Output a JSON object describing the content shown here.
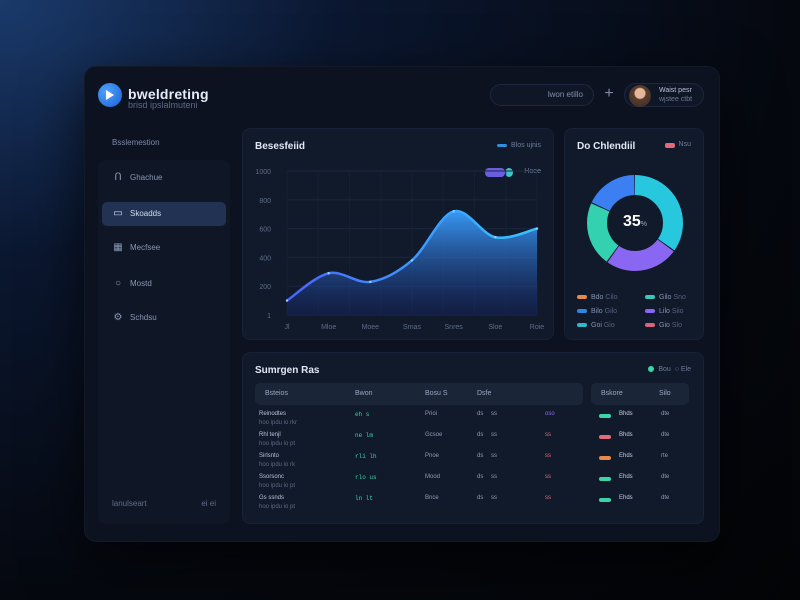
{
  "app": {
    "title": "bweldreting",
    "subtitle": "brisd ipslalmuteni"
  },
  "header": {
    "search_text": "lwon etillo",
    "user": {
      "name": "Waist pesr",
      "role": "wjstee ctbt"
    }
  },
  "sidebar": {
    "title": "Bsslemestion",
    "items": [
      {
        "icon": "chart-icon",
        "label": "Ghachue"
      },
      {
        "icon": "folder-icon",
        "label": "Skoadds"
      },
      {
        "icon": "grid-icon",
        "label": "Mecfsee"
      },
      {
        "icon": "circle-icon",
        "label": "Mostd"
      },
      {
        "icon": "settings-icon",
        "label": "Schdsu"
      }
    ],
    "footer": "lanulseart",
    "footer_meta": "ei ei"
  },
  "main_chart": {
    "title": "Besesfeiid",
    "legend": "Blos ujnis",
    "chip_label": "Hoee",
    "y_ticks": [
      "1000",
      "800",
      "600",
      "400",
      "200",
      "1"
    ],
    "x_ticks": [
      "Jl",
      "Mloe",
      "Moee",
      "Smas",
      "Snres",
      "Sloe",
      "Roie"
    ]
  },
  "chart_data": {
    "type": "area",
    "title": "Besesfeiid",
    "x": [
      "Jl",
      "Mloe",
      "Moee",
      "Smas",
      "Snres",
      "Sloe",
      "Roie"
    ],
    "values": [
      100,
      290,
      230,
      380,
      720,
      540,
      600
    ],
    "ylim": [
      0,
      1000
    ]
  },
  "donut": {
    "title": "Do Chlendiil",
    "chip_label": "Nsu",
    "center_value": "35",
    "center_unit": "%",
    "legend": [
      {
        "label": "Bdo",
        "value": "Cilo",
        "color": "#e6894a"
      },
      {
        "label": "Gilo",
        "value": "Sno",
        "color": "#38c7b9"
      },
      {
        "label": "Bilo",
        "value": "Gilo",
        "color": "#2f86e0"
      },
      {
        "label": "Lilo",
        "value": "Siio",
        "color": "#8a67f2"
      },
      {
        "label": "Goi",
        "value": "Gio",
        "color": "#2eb8c8"
      },
      {
        "label": "Gio",
        "value": "Slo",
        "color": "#d9657d"
      }
    ],
    "segments": [
      {
        "value": 35,
        "color": "#27c8de"
      },
      {
        "value": 25,
        "color": "#8a67f2"
      },
      {
        "value": 22,
        "color": "#34d1b0"
      },
      {
        "value": 18,
        "color": "#3b7ff2"
      }
    ]
  },
  "table": {
    "title": "Sumrgen Ras",
    "tool_label": "Bou",
    "tool_label2": "Ele",
    "headers": [
      "Bsteios",
      "Bwon",
      "Bosu S",
      "Dsfe",
      "Bskore",
      "Silo"
    ],
    "rows": [
      {
        "name": "Reinodtes",
        "sub": "hoo ipdu io rkr",
        "num": "eh s",
        "pct": "Prioi",
        "a": "ds",
        "b": "ss",
        "tag": "oso",
        "c": "Bhds",
        "c2": "dte"
      },
      {
        "name": "Rhl tenjl",
        "sub": "hoo ipdu io pt",
        "num": "ne lm",
        "pct": "Gcsoe",
        "a": "ds",
        "b": "ss",
        "tag": "ss",
        "c": "Bhds",
        "c2": "dte"
      },
      {
        "name": "Sirlsnto",
        "sub": "hoo ipdu io rk",
        "num": "rli lh",
        "pct": "Pnoe",
        "a": "ds",
        "b": "ss",
        "tag": "ss",
        "c": "Ehds",
        "c2": "rte"
      },
      {
        "name": "Ssorsonc",
        "sub": "hoo ipdu io pt",
        "num": "rlo us",
        "pct": "Mood",
        "a": "ds",
        "b": "ss",
        "tag": "ss",
        "c": "Ehds",
        "c2": "dte"
      },
      {
        "name": "Gs ssnds",
        "sub": "hoo ipdu io pt",
        "num": "ln lt",
        "pct": "Bnce",
        "a": "ds",
        "b": "ss",
        "tag": "ss",
        "c": "Ehds",
        "c2": "dte"
      }
    ],
    "status_colors": [
      "#3ad6a8",
      "#e36a7a",
      "#e6894a",
      "#3ad6a8",
      "#3ad6a8"
    ]
  }
}
